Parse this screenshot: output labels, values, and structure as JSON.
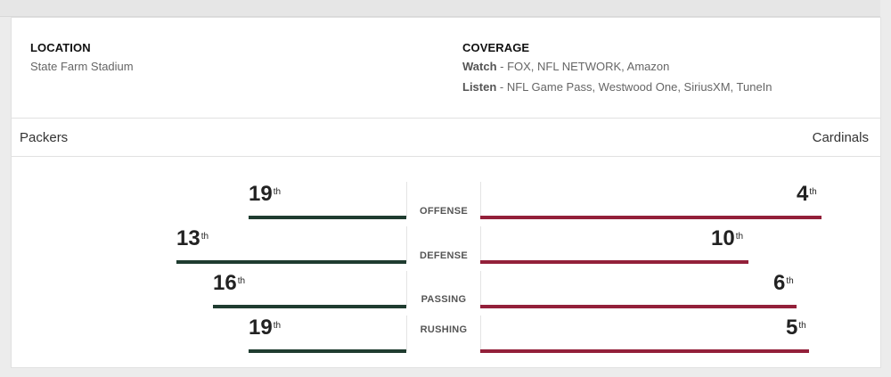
{
  "location": {
    "title": "LOCATION",
    "value": "State Farm Stadium"
  },
  "coverage": {
    "title": "COVERAGE",
    "watch_label": "Watch",
    "watch_value": " - FOX, NFL NETWORK, Amazon",
    "listen_label": "Listen",
    "listen_value": " - NFL Game Pass, Westwood One, SiriusXM, TuneIn"
  },
  "teams": {
    "left": "Packers",
    "right": "Cardinals"
  },
  "colors": {
    "left_team": "#1f3c30",
    "right_team": "#93203a"
  },
  "rankings": [
    {
      "category": "OFFENSE",
      "left_rank": "19",
      "left_suffix": "th",
      "right_rank": "4",
      "right_suffix": "th"
    },
    {
      "category": "DEFENSE",
      "left_rank": "13",
      "left_suffix": "th",
      "right_rank": "10",
      "right_suffix": "th"
    },
    {
      "category": "PASSING",
      "left_rank": "16",
      "left_suffix": "th",
      "right_rank": "6",
      "right_suffix": "th"
    },
    {
      "category": "RUSHING",
      "left_rank": "19",
      "left_suffix": "th",
      "right_rank": "5",
      "right_suffix": "th"
    }
  ]
}
